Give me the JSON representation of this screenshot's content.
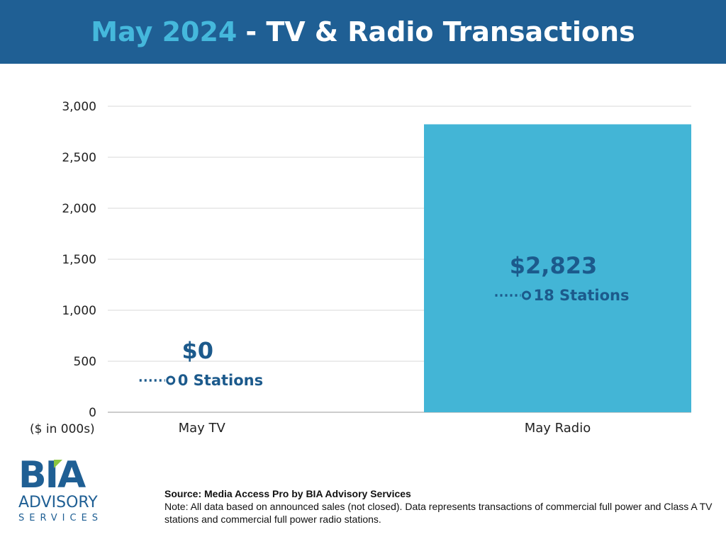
{
  "header": {
    "title_highlight": "May 2024",
    "title_rest": "- TV & Radio Transactions"
  },
  "chart_data": {
    "type": "bar",
    "title": "May 2024 - TV & Radio Transactions",
    "categories": [
      "May TV",
      "May Radio"
    ],
    "values": [
      0,
      2823
    ],
    "value_labels": [
      "$0",
      "$2,823"
    ],
    "station_labels": [
      "0 Stations",
      "18 Stations"
    ],
    "ylabel": "($ in 000s)",
    "ylim": [
      0,
      3000
    ],
    "yticks": [
      0,
      500,
      1000,
      1500,
      2000,
      2500,
      3000
    ],
    "ytick_labels": [
      "0",
      "500",
      "1,000",
      "1,500",
      "2,000",
      "2,500",
      "3,000"
    ],
    "grid": true,
    "bar_color": "#43b5d6",
    "label_color": "#1c5a8c"
  },
  "logo": {
    "bia": "BIA",
    "advisory": "ADVISORY",
    "services": "SERVICES"
  },
  "footer": {
    "source": "Source: Media Access Pro by BIA Advisory Services",
    "note": "Note: All data based on announced sales (not closed).  Data represents transactions of commercial full power and Class A TV stations and commercial full power radio stations."
  }
}
